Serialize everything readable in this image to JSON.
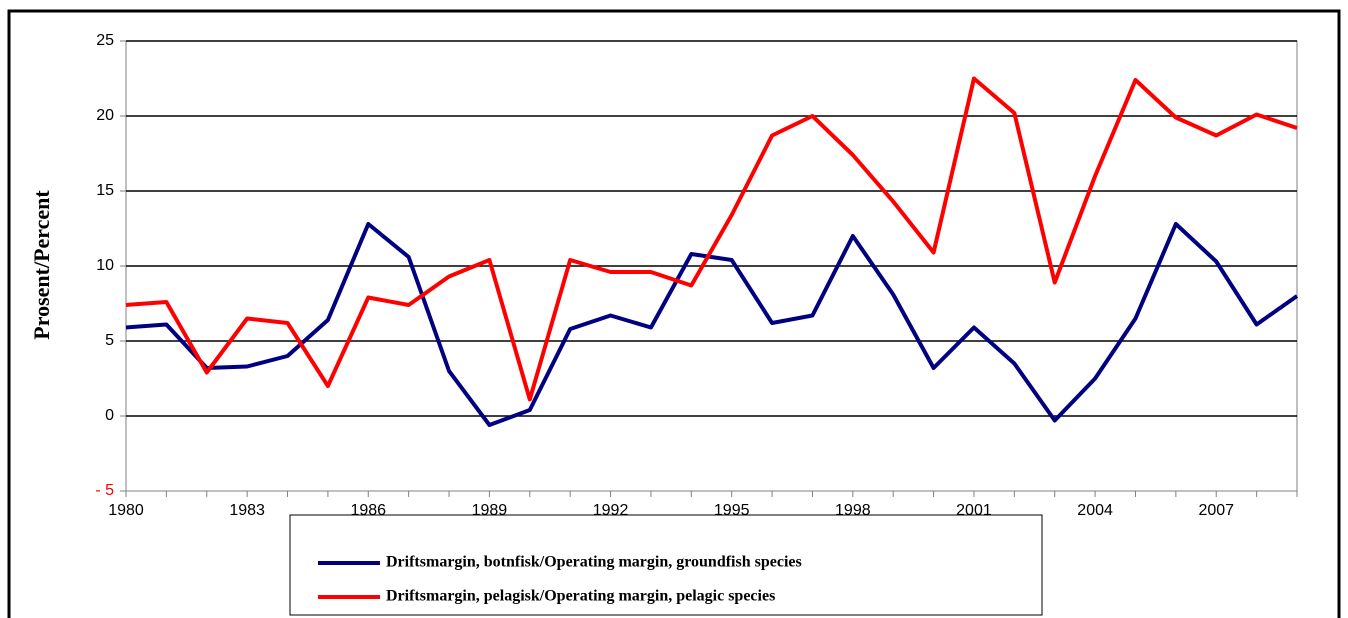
{
  "chart_data": {
    "type": "line",
    "y_label": "Prosent/Percent",
    "x": [
      1980,
      1981,
      1982,
      1983,
      1984,
      1985,
      1986,
      1987,
      1988,
      1989,
      1990,
      1991,
      1992,
      1993,
      1994,
      1995,
      1996,
      1997,
      1998,
      1999,
      2000,
      2001,
      2002,
      2003,
      2004,
      2005,
      2006,
      2007,
      2008,
      2009
    ],
    "xlim": [
      1980,
      2009
    ],
    "xticks": [
      1980,
      1983,
      1986,
      1989,
      1992,
      1995,
      1998,
      2001,
      2004,
      2007
    ],
    "ylim": [
      -5,
      25
    ],
    "yticks": [
      {
        "value": -5,
        "label": "- 5"
      },
      0,
      5,
      10,
      15,
      20,
      25
    ],
    "negative_tick_color": "#ff0000",
    "grid": true,
    "legend": "bottom",
    "series": [
      {
        "name": "Driftsmargin, botnfisk/Operating margin, groundfish species",
        "color": "#000080",
        "values": [
          5.9,
          6.1,
          3.2,
          3.3,
          4.0,
          6.4,
          12.8,
          10.6,
          3.0,
          -0.6,
          0.4,
          5.8,
          6.7,
          5.9,
          10.8,
          10.4,
          6.2,
          6.7,
          12.0,
          8.1,
          3.2,
          5.9,
          3.5,
          -0.3,
          2.5,
          6.5,
          12.8,
          10.3,
          6.1,
          8.0
        ]
      },
      {
        "name": "Driftsmargin, pelagisk/Operating margin, pelagic species",
        "color": "#ff0000",
        "values": [
          7.4,
          7.6,
          2.9,
          6.5,
          6.2,
          2.0,
          7.9,
          7.4,
          9.3,
          10.4,
          1.1,
          10.4,
          9.6,
          9.6,
          8.7,
          13.4,
          18.7,
          20.0,
          17.4,
          14.3,
          10.9,
          22.5,
          20.2,
          8.9,
          16.0,
          22.4,
          19.9,
          18.7,
          20.1,
          19.2
        ]
      }
    ]
  }
}
